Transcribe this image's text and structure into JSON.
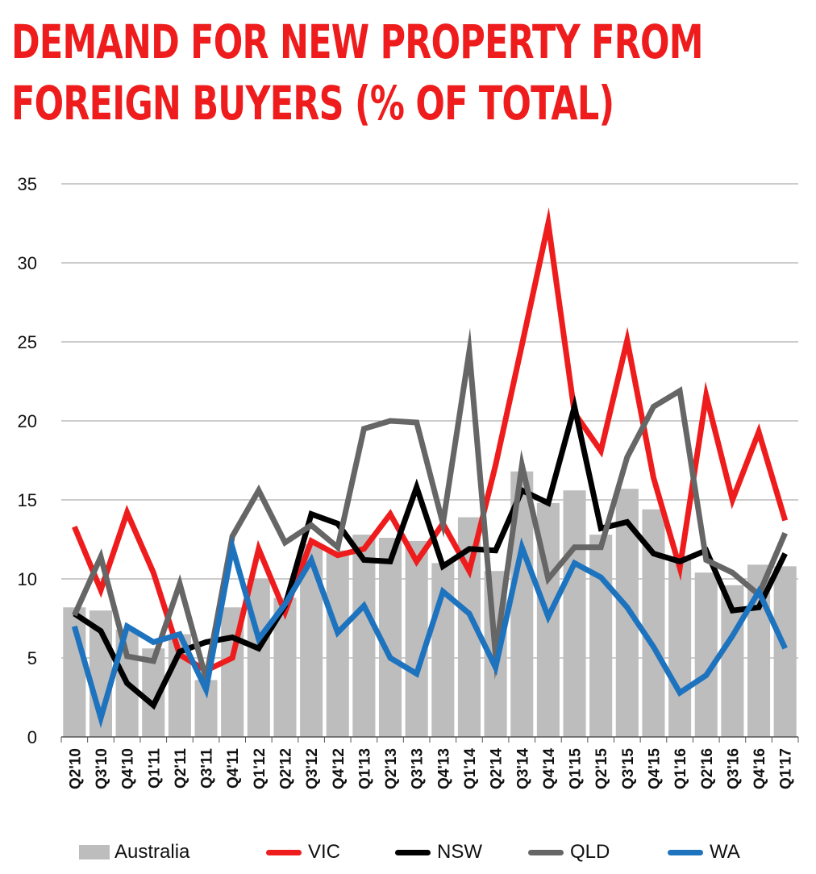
{
  "title_lines": [
    "DEMAND FOR NEW PROPERTY FROM",
    "FOREIGN BUYERS (% OF TOTAL)"
  ],
  "chart_data": {
    "type": "bar+line",
    "title": "DEMAND FOR NEW PROPERTY FROM FOREIGN BUYERS (% OF TOTAL)",
    "xlabel": "",
    "ylabel": "",
    "ylim": [
      0,
      35
    ],
    "yticks": [
      0,
      5,
      10,
      15,
      20,
      25,
      30,
      35
    ],
    "grid": true,
    "legend_position": "bottom",
    "categories": [
      "Q2'10",
      "Q3'10",
      "Q4'10",
      "Q1'11",
      "Q2'11",
      "Q3'11",
      "Q4'11",
      "Q1'12",
      "Q2'12",
      "Q3'12",
      "Q4'12",
      "Q1'13",
      "Q2'13",
      "Q3'13",
      "Q4'13",
      "Q1'14",
      "Q2'14",
      "Q3'14",
      "Q4'14",
      "Q1'15",
      "Q2'15",
      "Q3'15",
      "Q4'15",
      "Q1'16",
      "Q2'16",
      "Q3'16",
      "Q4'16",
      "Q1'17"
    ],
    "series": [
      {
        "name": "Australia",
        "type": "bar",
        "color": "#bdbdbd",
        "values": [
          8.2,
          8.0,
          6.8,
          5.6,
          6.5,
          3.6,
          8.2,
          10.0,
          8.8,
          12.2,
          11.8,
          12.8,
          12.6,
          12.4,
          11.0,
          13.9,
          10.5,
          16.8,
          14.8,
          15.6,
          12.8,
          15.7,
          14.4,
          11.4,
          10.4,
          9.6,
          10.9,
          10.8
        ]
      },
      {
        "name": "VIC",
        "type": "line",
        "color": "#ee1c1c",
        "values": [
          13.3,
          9.3,
          14.2,
          10.4,
          5.2,
          4.2,
          5.0,
          11.9,
          7.9,
          12.4,
          11.5,
          11.9,
          14.1,
          11.1,
          13.5,
          10.5,
          17.2,
          24.8,
          32.5,
          20.5,
          18.1,
          25.1,
          16.4,
          10.7,
          21.6,
          15.0,
          19.3,
          13.7
        ]
      },
      {
        "name": "NSW",
        "type": "line",
        "color": "#000000",
        "values": [
          7.8,
          6.7,
          3.4,
          2.0,
          5.4,
          6.0,
          6.3,
          5.6,
          8.3,
          14.1,
          13.5,
          11.2,
          11.1,
          15.8,
          10.8,
          11.9,
          11.8,
          15.6,
          14.8,
          20.9,
          13.2,
          13.6,
          11.6,
          11.1,
          11.8,
          8.0,
          8.2,
          11.6
        ]
      },
      {
        "name": "QLD",
        "type": "line",
        "color": "#666666",
        "values": [
          7.7,
          11.4,
          5.1,
          4.8,
          9.7,
          3.7,
          12.7,
          15.6,
          12.3,
          13.4,
          12.0,
          19.5,
          20.0,
          19.9,
          13.5,
          24.4,
          5.2,
          17.2,
          10.0,
          12.0,
          12.0,
          17.7,
          20.9,
          21.9,
          11.2,
          10.4,
          9.0,
          12.9
        ]
      },
      {
        "name": "WA",
        "type": "line",
        "color": "#1e73be",
        "values": [
          7.0,
          1.2,
          7.0,
          6.0,
          6.5,
          3.0,
          12.0,
          6.2,
          8.4,
          11.2,
          6.6,
          8.3,
          5.0,
          4.0,
          9.2,
          7.8,
          4.4,
          12.0,
          7.6,
          11.0,
          10.1,
          8.2,
          5.7,
          2.8,
          3.9,
          6.4,
          9.2,
          5.6
        ]
      }
    ]
  }
}
